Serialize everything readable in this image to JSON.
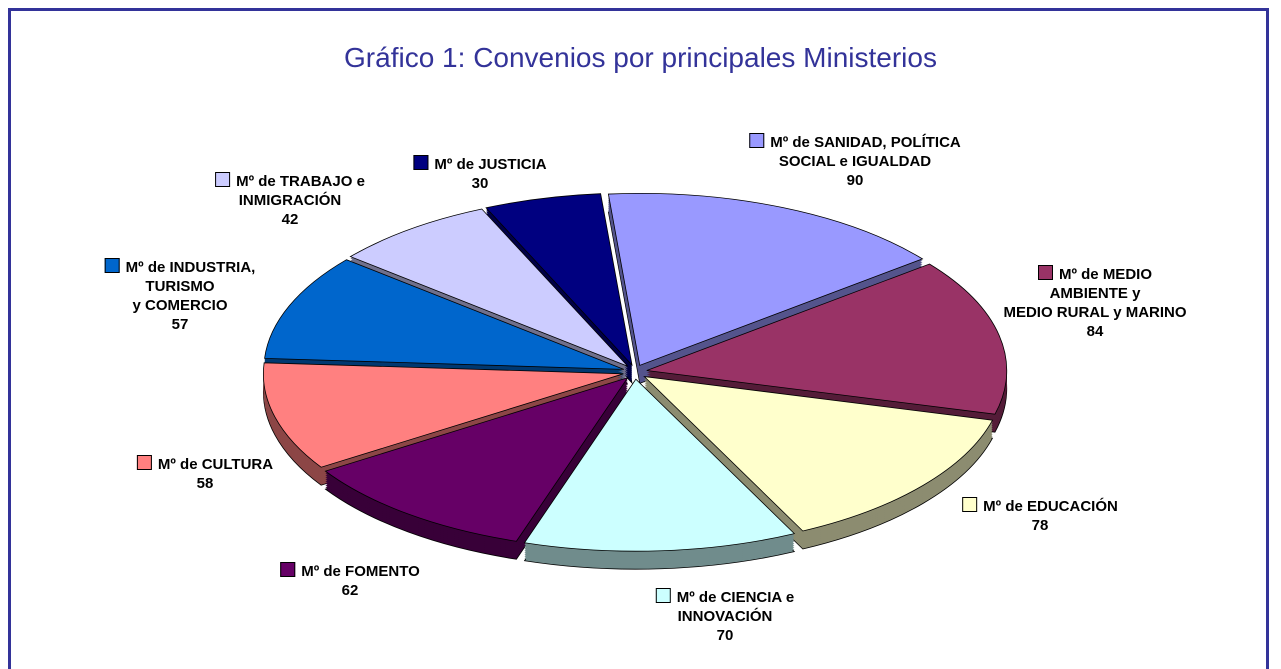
{
  "chart_data": {
    "type": "pie",
    "title": "Gráfico 1: Convenios por principales Ministerios",
    "categories": [
      "Mº de SANIDAD, POLÍTICA\nSOCIAL e IGUALDAD",
      "Mº de MEDIO AMBIENTE y\nMEDIO RURAL y MARINO",
      "Mº de EDUCACIÓN",
      "Mº de CIENCIA e\nINNOVACIÓN",
      "Mº de FOMENTO",
      "Mº de CULTURA",
      "Mº de INDUSTRIA,\nTURISMO\ny COMERCIO",
      "Mº de TRABAJO e\nINMIGRACIÓN",
      "Mº de JUSTICIA"
    ],
    "values": [
      90,
      84,
      78,
      70,
      62,
      58,
      57,
      42,
      30
    ],
    "colors": [
      "#9999ff",
      "#993366",
      "#ffffcc",
      "#ccffff",
      "#660066",
      "#ff8080",
      "#0066cc",
      "#ccccff",
      "#000080"
    ]
  }
}
